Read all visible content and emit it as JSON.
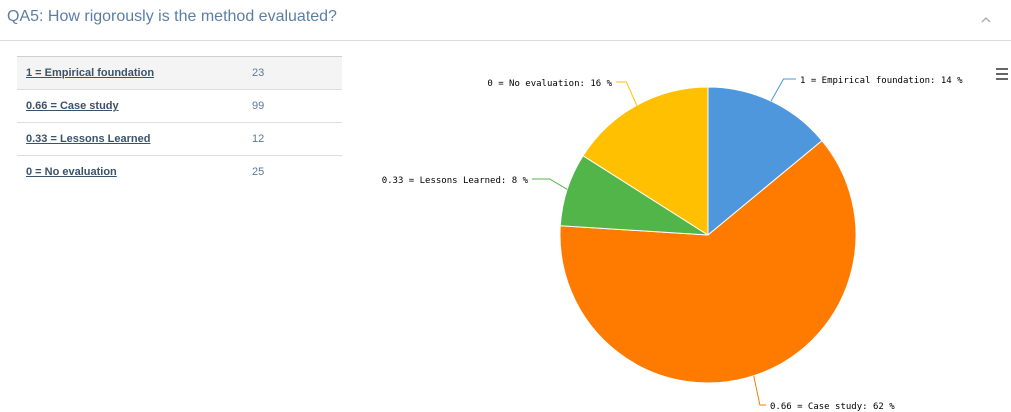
{
  "panel": {
    "title": "QA5: How rigorously is the method evaluated?"
  },
  "icons": {
    "collapse": "chevron-up-icon",
    "menu": "hamburger-menu-icon"
  },
  "table": {
    "rows": [
      {
        "label": "1 = Empirical foundation",
        "count": "23"
      },
      {
        "label": "0.66 = Case study",
        "count": "99"
      },
      {
        "label": "0.33 = Lessons Learned",
        "count": "12"
      },
      {
        "label": "0 = No evaluation",
        "count": "25"
      }
    ]
  },
  "chart_data": {
    "type": "pie",
    "title": "",
    "slices": [
      {
        "label": "1 = Empirical foundation",
        "value": 14,
        "color": "#4e97dd"
      },
      {
        "label": "0.66 = Case study",
        "value": 62,
        "color": "#fe7b00"
      },
      {
        "label": "0.33 = Lessons Learned",
        "value": 8,
        "color": "#51b549"
      },
      {
        "label": "0 = No evaluation",
        "value": 16,
        "color": "#ffc001"
      }
    ],
    "data_labels": [
      "1 = Empirical foundation: 14 %",
      "0.66 = Case study: 62 %",
      "0.33 = Lessons Learned: 8 %",
      "0 = No evaluation: 16 %"
    ],
    "unit": "%",
    "start_angle": "top, clockwise"
  }
}
